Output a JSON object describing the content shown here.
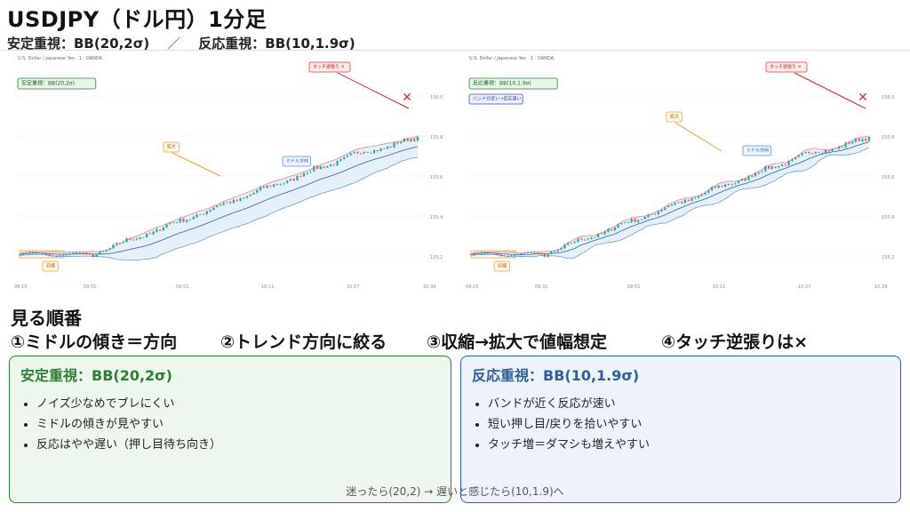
{
  "header": {
    "title": "USDJPY（ドル円）1分足",
    "subtitle_left": "安定重視：BB(20,2σ)",
    "subtitle_sep": "／",
    "subtitle_right": "反応重視：BB(10,1.9σ)"
  },
  "chart_data": [
    {
      "type": "candlestick",
      "header_text": "U.S. Dollar / Japanese Yen · 1 · OANDA",
      "indicator_badge": "安定重視：BB(20,2σ)",
      "bb_period": 20,
      "bb_sigma": 2,
      "annotations": {
        "squeeze": "収縮",
        "expand": "拡大",
        "middle": "ミドル方向",
        "touch": "タッチ逆張り ×",
        "cross": "✕"
      },
      "y_ticks": [
        "156.0",
        "155.8",
        "155.6",
        "155.4",
        "155.2"
      ],
      "x_ticks": [
        "09:15",
        "09:31",
        "09:51",
        "10:11",
        "10:27",
        "10:39"
      ],
      "color_up": "#26a69a",
      "color_down": "#ef5350",
      "band_fill": "#dbe9f7",
      "middle_color": "#2f5e9e"
    },
    {
      "type": "candlestick",
      "header_text": "U.S. Dollar / Japanese Yen · 1 · OANDA",
      "indicator_badge": "反応重視：BB(10,1.9σ)",
      "note_badge": "バンドが近い→反応速い",
      "bb_period": 10,
      "bb_sigma": 1.9,
      "annotations": {
        "squeeze": "収縮",
        "expand": "拡大",
        "middle": "ミドル方向",
        "touch": "タッチ逆張り ×",
        "cross": "✕"
      },
      "y_ticks": [
        "156.0",
        "155.8",
        "155.6",
        "155.4",
        "155.2"
      ],
      "x_ticks": [
        "09:15",
        "09:31",
        "09:51",
        "10:11",
        "10:27",
        "10:39"
      ],
      "color_up": "#26a69a",
      "color_down": "#ef5350",
      "band_fill": "#dbe9f7",
      "middle_color": "#2f5e9e"
    }
  ],
  "sequence": {
    "title": "見る順番",
    "steps": [
      "①ミドルの傾き＝方向",
      "②トレンド方向に絞る",
      "③収縮→拡大で値幅想定",
      "④タッチ逆張りは×"
    ]
  },
  "cards": {
    "stable": {
      "title": "安定重視：BB(20,2σ)",
      "items": [
        "ノイズ少なめでブレにくい",
        "ミドルの傾きが見やすい",
        "反応はやや遅い（押し目待ち向き）"
      ]
    },
    "reactive": {
      "title": "反応重視：BB(10,1.9σ)",
      "items": [
        "バンドが近く反応が速い",
        "短い押し目/戻りを拾いやすい",
        "タッチ増＝ダマシも増えやすい"
      ]
    }
  },
  "footer": "迷ったら(20,2) → 遅いと感じたら(10,1.9)へ"
}
